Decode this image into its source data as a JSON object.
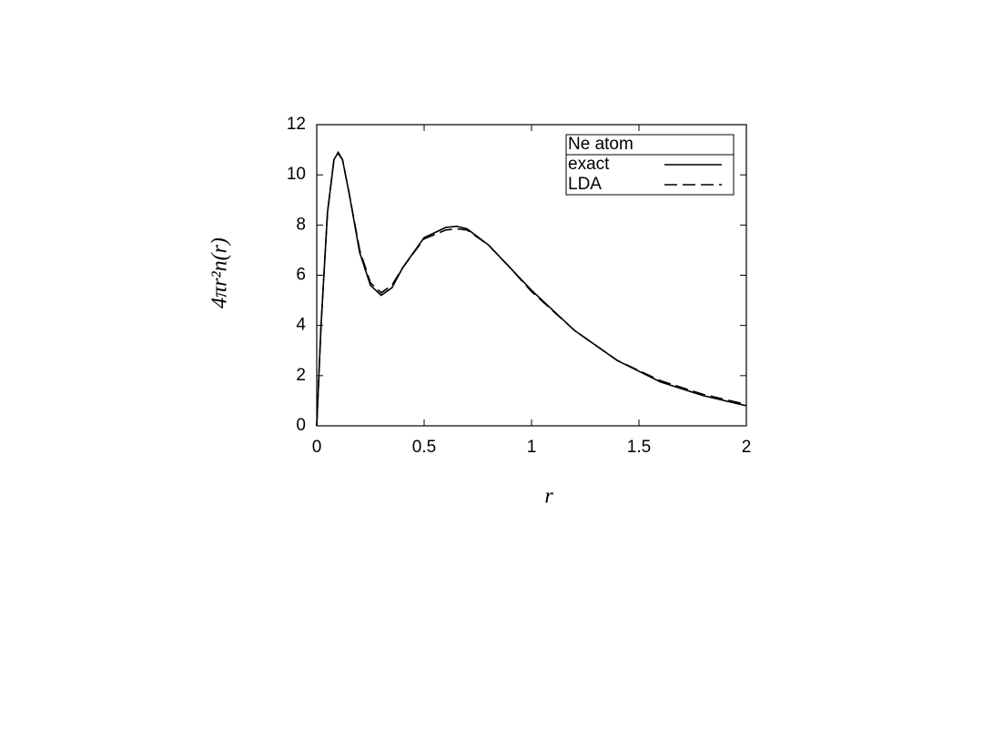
{
  "chart_data": {
    "type": "line",
    "x_label": "r",
    "y_label": "4πr²n(r)",
    "x": [
      0,
      0.02,
      0.05,
      0.08,
      0.1,
      0.12,
      0.15,
      0.2,
      0.25,
      0.3,
      0.35,
      0.4,
      0.5,
      0.6,
      0.65,
      0.7,
      0.8,
      0.9,
      1.0,
      1.2,
      1.4,
      1.6,
      1.8,
      2.0
    ],
    "series": [
      {
        "name": "exact",
        "color": "#000000",
        "dash": "solid",
        "values": [
          0,
          4.0,
          8.5,
          10.6,
          10.9,
          10.6,
          9.3,
          6.9,
          5.6,
          5.2,
          5.5,
          6.3,
          7.5,
          7.9,
          7.95,
          7.85,
          7.2,
          6.3,
          5.4,
          3.8,
          2.6,
          1.75,
          1.2,
          0.8
        ]
      },
      {
        "name": "LDA",
        "color": "#000000",
        "dash": "dashed",
        "values": [
          0,
          4.0,
          8.5,
          10.6,
          10.85,
          10.6,
          9.3,
          7.0,
          5.7,
          5.3,
          5.6,
          6.3,
          7.45,
          7.8,
          7.85,
          7.8,
          7.2,
          6.3,
          5.35,
          3.8,
          2.6,
          1.8,
          1.25,
          0.85
        ]
      }
    ],
    "xlim": [
      0,
      2
    ],
    "xticks": [
      0,
      0.5,
      1,
      1.5,
      2
    ],
    "ylim": [
      0,
      12
    ],
    "yticks": [
      0,
      2,
      4,
      6,
      8,
      10,
      12
    ],
    "grid": false,
    "legend": {
      "title": "Ne atom",
      "position": "upper right"
    }
  }
}
